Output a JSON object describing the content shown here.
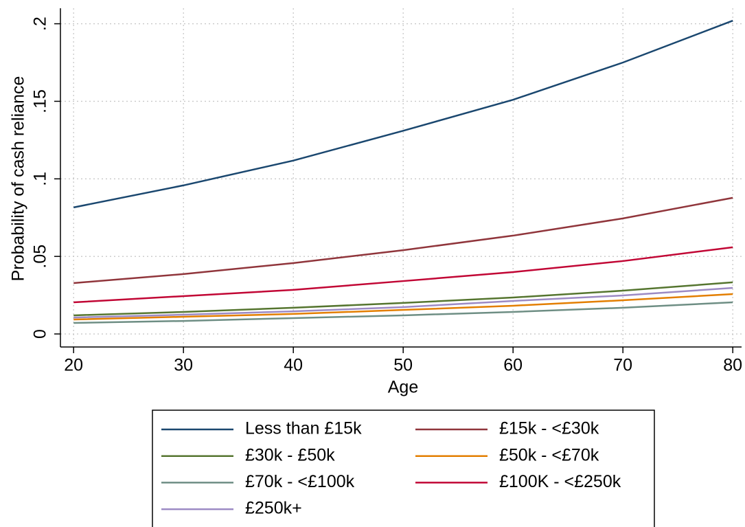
{
  "chart_data": {
    "type": "line",
    "xlabel": "Age",
    "ylabel": "Probability of cash reliance",
    "x": [
      20,
      30,
      40,
      50,
      60,
      70,
      80
    ],
    "series": [
      {
        "name": "Less than £15k",
        "color": "#1a476f",
        "values": [
          0.0816,
          0.0958,
          0.1118,
          0.131,
          0.151,
          0.175,
          0.202
        ]
      },
      {
        "name": "£15k - <£30k",
        "color": "#90353b",
        "values": [
          0.0328,
          0.0386,
          0.0457,
          0.054,
          0.0634,
          0.0745,
          0.0878
        ]
      },
      {
        "name": "£30k - £50k",
        "color": "#55752f",
        "values": [
          0.012,
          0.0142,
          0.0169,
          0.02,
          0.0235,
          0.0279,
          0.0333
        ]
      },
      {
        "name": "£50k - <£70k",
        "color": "#e37e00",
        "values": [
          0.0093,
          0.0111,
          0.0129,
          0.0155,
          0.0182,
          0.0217,
          0.0257
        ]
      },
      {
        "name": "£70k - <£100k",
        "color": "#6e8e84",
        "values": [
          0.0071,
          0.0084,
          0.0102,
          0.012,
          0.0142,
          0.0169,
          0.0204
        ]
      },
      {
        "name": "£100K - <£250k",
        "color": "#c10534",
        "values": [
          0.0204,
          0.0244,
          0.0284,
          0.0341,
          0.0399,
          0.047,
          0.0559
        ]
      },
      {
        "name": "£250k+",
        "color": "#9c8ac4",
        "values": [
          0.0106,
          0.0124,
          0.0146,
          0.0173,
          0.0213,
          0.0248,
          0.0297
        ]
      }
    ],
    "xlim": [
      18.8,
      80.8
    ],
    "xticks": [
      20,
      30,
      40,
      50,
      60,
      70,
      80
    ],
    "ylim": [
      -0.0084,
      0.21
    ],
    "yticks": [
      0,
      {
        "value": 0.05,
        "label": ".05"
      },
      {
        "value": 0.1,
        "label": ".1"
      },
      {
        "value": 0.15,
        "label": ".15"
      },
      {
        "value": 0.2,
        "label": ".2"
      }
    ],
    "grid": true,
    "legend": "bottom"
  }
}
